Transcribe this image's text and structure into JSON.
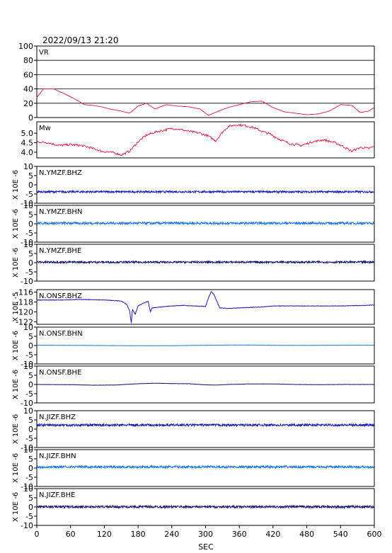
{
  "chart_data": {
    "type": "line",
    "title": "2022/09/13 21:20",
    "xlabel": "SEC",
    "xlim": [
      0,
      600
    ],
    "x_ticks": [
      "0",
      "60",
      "120",
      "180",
      "240",
      "300",
      "360",
      "420",
      "480",
      "540",
      "600"
    ],
    "panels": [
      {
        "label": "VR",
        "unit": "",
        "ylim": [
          0,
          100
        ],
        "y_ticks": [
          "100",
          "80",
          "60",
          "40",
          "20",
          "0"
        ],
        "gridlines": [
          20,
          40,
          60,
          80
        ],
        "color": "#dc143c",
        "series": {
          "x": [
            0,
            12,
            30,
            50,
            70,
            85,
            100,
            115,
            130,
            150,
            165,
            180,
            195,
            210,
            230,
            250,
            270,
            290,
            305,
            320,
            340,
            360,
            380,
            400,
            420,
            440,
            460,
            480,
            500,
            520,
            540,
            560,
            575,
            590,
            600
          ],
          "y": [
            28,
            40,
            40,
            33,
            25,
            18,
            17,
            15,
            12,
            9,
            6,
            16,
            20,
            12,
            18,
            16,
            15,
            12,
            3,
            8,
            14,
            18,
            22,
            23,
            14,
            8,
            6,
            4,
            5,
            9,
            18,
            17,
            7,
            9,
            14
          ]
        }
      },
      {
        "label": "Mw",
        "unit": "",
        "ylim": [
          3.7,
          5.6
        ],
        "y_ticks": [
          "5.0",
          "4.5",
          "4.0"
        ],
        "gridlines": [],
        "color": "#dc143c",
        "series": {
          "x": [
            0,
            20,
            40,
            60,
            80,
            100,
            115,
            130,
            140,
            150,
            165,
            180,
            195,
            210,
            225,
            240,
            255,
            270,
            290,
            305,
            318,
            330,
            340,
            355,
            370,
            385,
            400,
            415,
            430,
            450,
            470,
            490,
            510,
            530,
            545,
            560,
            575,
            590,
            600
          ],
          "y": [
            4.55,
            4.5,
            4.35,
            4.4,
            4.35,
            4.2,
            4.05,
            4.0,
            3.95,
            3.85,
            4.05,
            4.55,
            4.9,
            5.05,
            5.15,
            5.25,
            5.2,
            5.1,
            5.0,
            4.85,
            4.6,
            5.05,
            5.35,
            5.45,
            5.4,
            5.3,
            5.1,
            4.95,
            4.7,
            4.45,
            4.35,
            4.55,
            4.65,
            4.5,
            4.3,
            4.05,
            4.25,
            4.2,
            4.3
          ]
        }
      },
      {
        "label": "N.YMZF.BHZ",
        "unit": "X 10E -6",
        "ylim": [
          -10,
          10
        ],
        "y_ticks": [
          "10",
          "5",
          "0",
          "-5",
          "-10"
        ],
        "gridlines": [],
        "color": "#1a1ab4",
        "series": {
          "x": [
            0,
            600
          ],
          "y": [
            -3.8,
            -3.8
          ]
        }
      },
      {
        "label": "N.YMZF.BHN",
        "unit": "X 10E -6",
        "ylim": [
          -10,
          10
        ],
        "y_ticks": [
          "10",
          "5",
          "0",
          "-5",
          "-10"
        ],
        "gridlines": [],
        "color": "#1e78dc",
        "series": {
          "x": [
            0,
            600
          ],
          "y": [
            0.3,
            0.3
          ]
        }
      },
      {
        "label": "N.YMZF.BHE",
        "unit": "X 10E -6",
        "ylim": [
          -10,
          10
        ],
        "y_ticks": [
          "10",
          "5",
          "0",
          "-5",
          "-10"
        ],
        "gridlines": [],
        "color": "#10106e",
        "series": {
          "x": [
            0,
            600
          ],
          "y": [
            0.3,
            0.3
          ]
        }
      },
      {
        "label": "N.ONSF.BHZ",
        "unit": "X 10E -5",
        "ylim": [
          -122.5,
          -115.5
        ],
        "y_ticks": [
          "-116",
          "-118",
          "-120",
          "-122"
        ],
        "gridlines": [],
        "color": "#1a1ab4",
        "series": {
          "x": [
            0,
            40,
            80,
            120,
            150,
            160,
            165,
            168,
            170,
            175,
            180,
            190,
            198,
            202,
            205,
            220,
            240,
            260,
            280,
            300,
            305,
            310,
            315,
            320,
            325,
            340,
            380,
            400,
            420,
            460,
            500,
            540,
            580,
            600
          ],
          "y": [
            -117.6,
            -117.6,
            -117.5,
            -117.6,
            -117.8,
            -118.5,
            -119.8,
            -122.3,
            -119.5,
            -120.5,
            -118.8,
            -118.2,
            -117.9,
            -120.0,
            -119.2,
            -119.0,
            -118.8,
            -118.7,
            -118.8,
            -118.9,
            -117.2,
            -115.9,
            -116.5,
            -117.8,
            -119.2,
            -119.3,
            -119.1,
            -119.0,
            -118.8,
            -118.8,
            -118.8,
            -118.8,
            -118.7,
            -118.6
          ]
        }
      },
      {
        "label": "N.ONSF.BHN",
        "unit": "X 10E -6",
        "ylim": [
          -10,
          10
        ],
        "y_ticks": [
          "10",
          "5",
          "0",
          "-5",
          "-10"
        ],
        "gridlines": [],
        "color": "#1e78dc",
        "series": {
          "x": [
            0,
            60,
            120,
            180,
            240,
            280,
            320,
            360,
            400,
            440,
            480,
            540,
            600
          ],
          "y": [
            0.2,
            0.1,
            0.0,
            -0.1,
            -0.1,
            0.1,
            0.2,
            0.3,
            0.2,
            0.1,
            0.1,
            0.2,
            0.2
          ]
        }
      },
      {
        "label": "N.ONSF.BHE",
        "unit": "X 10E -6",
        "ylim": [
          -10,
          10
        ],
        "y_ticks": [
          "10",
          "5",
          "0",
          "-5",
          "-10"
        ],
        "gridlines": [],
        "color": "#10106e",
        "series": {
          "x": [
            0,
            60,
            100,
            140,
            180,
            210,
            240,
            270,
            300,
            320,
            340,
            380,
            420,
            460,
            500,
            540,
            600
          ],
          "y": [
            0.0,
            -0.1,
            -0.4,
            -0.3,
            0.4,
            0.7,
            0.5,
            0.4,
            -0.2,
            -0.3,
            0.0,
            0.3,
            0.3,
            0.0,
            -0.1,
            0.0,
            0.0
          ]
        }
      },
      {
        "label": "N.JIZF.BHZ",
        "unit": "X 10E -6",
        "ylim": [
          -10,
          10
        ],
        "y_ticks": [
          "10",
          "5",
          "0",
          "-5",
          "-10"
        ],
        "gridlines": [],
        "color": "#1a1ab4",
        "series": {
          "x": [
            0,
            600
          ],
          "y": [
            2.2,
            2.2
          ]
        }
      },
      {
        "label": "N.JIZF.BHN",
        "unit": "X 10E -6",
        "ylim": [
          -10,
          10
        ],
        "y_ticks": [
          "10",
          "5",
          "0",
          "-5",
          "-10"
        ],
        "gridlines": [],
        "color": "#1e78dc",
        "series": {
          "x": [
            0,
            600
          ],
          "y": [
            0.6,
            0.6
          ]
        }
      },
      {
        "label": "N.JIZF.BHE",
        "unit": "X 10E -6",
        "ylim": [
          -10,
          10
        ],
        "y_ticks": [
          "10",
          "5",
          "0",
          "-5",
          "-10"
        ],
        "gridlines": [],
        "color": "#10106e",
        "series": {
          "x": [
            0,
            600
          ],
          "y": [
            0.1,
            0.1
          ]
        }
      }
    ]
  }
}
